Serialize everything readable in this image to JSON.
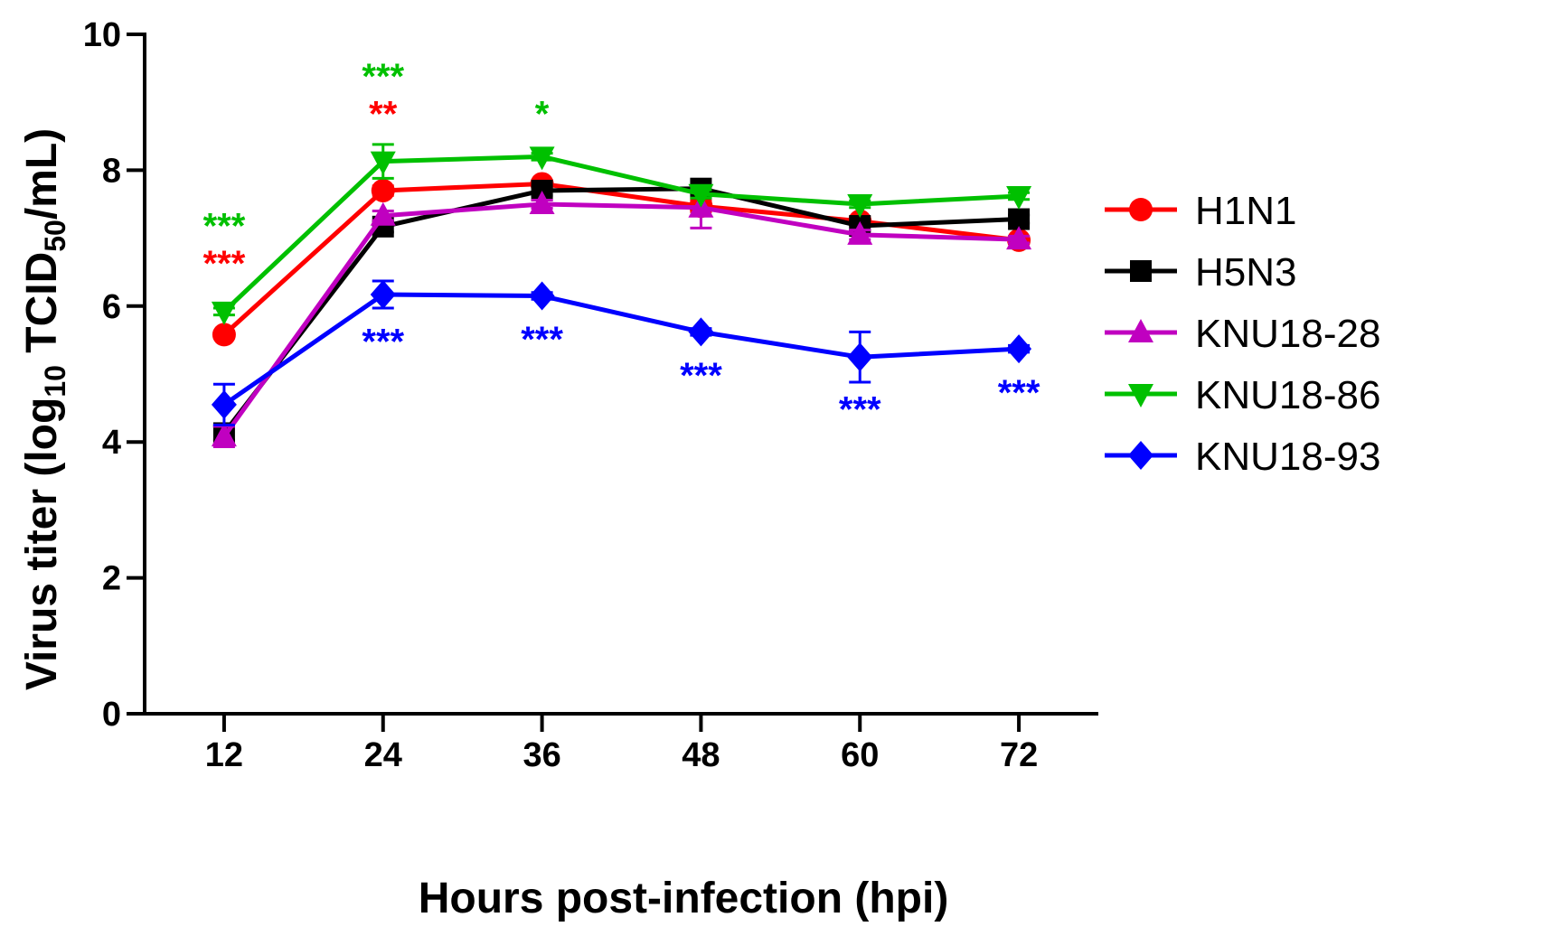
{
  "chart_data": {
    "type": "line",
    "title": "",
    "xlabel": "Hours post-infection (hpi)",
    "ylabel": {
      "prefix": "Virus titer (log",
      "sub1": "10",
      "middle": " TCID",
      "sub2": "50",
      "suffix": "/mL)"
    },
    "x": [
      12,
      24,
      36,
      48,
      60,
      72
    ],
    "x_tick_labels": [
      "12",
      "24",
      "36",
      "48",
      "60",
      "72"
    ],
    "y_ticks": [
      0,
      2,
      4,
      6,
      8,
      10
    ],
    "y_tick_labels": [
      "0",
      "2",
      "4",
      "6",
      "8",
      "10"
    ],
    "ylim": [
      0,
      10
    ],
    "xlim": [
      6,
      78
    ],
    "grid": false,
    "legend_position": "right",
    "series": [
      {
        "name": "H1N1",
        "color": "#ff0000",
        "marker": "circle",
        "values": [
          5.58,
          7.7,
          7.8,
          7.47,
          7.25,
          6.97
        ],
        "errors": [
          0.05,
          0.07,
          0.05,
          0.08,
          0.06,
          0.05
        ]
      },
      {
        "name": "H5N3",
        "color": "#000000",
        "marker": "square",
        "values": [
          4.13,
          7.17,
          7.7,
          7.73,
          7.18,
          7.28
        ],
        "errors": [
          0.1,
          0.08,
          0.07,
          0.05,
          0.07,
          0.06
        ]
      },
      {
        "name": "KNU18-28",
        "color": "#c000c0",
        "marker": "triangle-up",
        "values": [
          4.08,
          7.33,
          7.5,
          7.45,
          7.05,
          6.98
        ],
        "errors": [
          0.15,
          0.07,
          0.06,
          0.3,
          0.07,
          0.05
        ]
      },
      {
        "name": "KNU18-86",
        "color": "#00c000",
        "marker": "triangle-down",
        "values": [
          5.92,
          8.13,
          8.2,
          7.65,
          7.5,
          7.62
        ],
        "errors": [
          0.05,
          0.25,
          0.05,
          0.06,
          0.05,
          0.05
        ]
      },
      {
        "name": "KNU18-93",
        "color": "#0000ff",
        "marker": "diamond",
        "values": [
          4.55,
          6.17,
          6.15,
          5.62,
          5.25,
          5.37
        ],
        "errors": [
          0.3,
          0.2,
          0.05,
          0.05,
          0.37,
          0.05
        ]
      }
    ],
    "annotations": [
      {
        "x": 12,
        "y": 7.0,
        "text": "***",
        "color": "#00c000"
      },
      {
        "x": 12,
        "y": 6.45,
        "text": "***",
        "color": "#ff0000"
      },
      {
        "x": 24,
        "y": 9.2,
        "text": "***",
        "color": "#00c000"
      },
      {
        "x": 24,
        "y": 8.65,
        "text": "**",
        "color": "#ff0000"
      },
      {
        "x": 36,
        "y": 8.65,
        "text": "*",
        "color": "#00c000"
      },
      {
        "x": 24,
        "y": 5.3,
        "text": "***",
        "color": "#0000ff"
      },
      {
        "x": 36,
        "y": 5.33,
        "text": "***",
        "color": "#0000ff"
      },
      {
        "x": 48,
        "y": 4.8,
        "text": "***",
        "color": "#0000ff"
      },
      {
        "x": 60,
        "y": 4.3,
        "text": "***",
        "color": "#0000ff"
      },
      {
        "x": 72,
        "y": 4.55,
        "text": "***",
        "color": "#0000ff"
      }
    ]
  }
}
